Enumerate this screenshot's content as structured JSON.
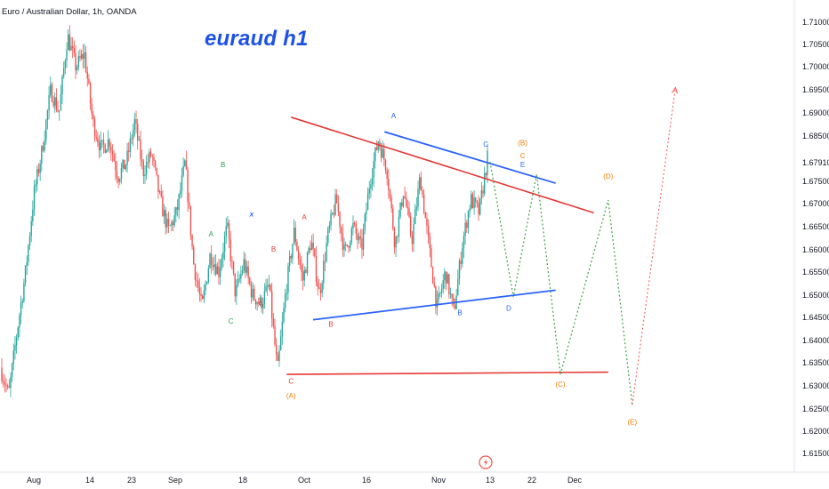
{
  "header": {
    "symbol_line": "Euro / Australian Dollar, 1h, OANDA",
    "annotation_title": "euraud h1"
  },
  "colors": {
    "up": "#26a69a",
    "down": "#ef5350",
    "red_line": "#e53935",
    "blue_line": "#2962ff",
    "projection": "#43a047",
    "final_projection": "#ef5350",
    "green_label": "#2e9b57",
    "red_label": "#e53935",
    "blue_label": "#2962ff",
    "orange_label": "#f57c00"
  },
  "chart_data": {
    "type": "candlestick",
    "title": "Euro / Australian Dollar, 1h, OANDA",
    "annotation": "euraud h1",
    "x_ticks": [
      "Aug",
      "14",
      "23",
      "Sep",
      "18",
      "Oct",
      "16",
      "Nov",
      "13",
      "22",
      "Dec"
    ],
    "y_ticks": [
      "1.71000",
      "1.70500",
      "1.70000",
      "1.69500",
      "1.69000",
      "1.68500",
      "1.67910",
      "1.67500",
      "1.67000",
      "1.66500",
      "1.66000",
      "1.65500",
      "1.65000",
      "1.64500",
      "1.64000",
      "1.63500",
      "1.63000",
      "1.62500",
      "1.62000",
      "1.61500"
    ],
    "ylim": [
      1.612,
      1.713
    ],
    "price_path": [
      1.634,
      1.628,
      1.642,
      1.655,
      1.672,
      1.682,
      1.695,
      1.69,
      1.707,
      1.7,
      1.703,
      1.688,
      1.682,
      1.684,
      1.676,
      1.679,
      1.688,
      1.677,
      1.681,
      1.671,
      1.664,
      1.668,
      1.679,
      1.657,
      1.647,
      1.659,
      1.655,
      1.665,
      1.65,
      1.657,
      1.65,
      1.648,
      1.652,
      1.633,
      1.651,
      1.664,
      1.653,
      1.662,
      1.65,
      1.663,
      1.671,
      1.659,
      1.665,
      1.66,
      1.675,
      1.684,
      1.678,
      1.661,
      1.673,
      1.662,
      1.676,
      1.661,
      1.647,
      1.655,
      1.646,
      1.661,
      1.671,
      1.668,
      1.68
    ],
    "trendlines": [
      {
        "name": "upper resistance",
        "color": "red",
        "points": [
          [
            "Sep 29",
            1.689
          ],
          [
            "Dec 5",
            1.668
          ]
        ]
      },
      {
        "name": "lower support",
        "color": "red",
        "points": [
          [
            "Sep 28",
            1.6325
          ],
          [
            "Dec 8",
            1.633
          ]
        ]
      },
      {
        "name": "triangle upper",
        "color": "blue",
        "points": [
          [
            "Oct 20",
            1.6858
          ],
          [
            "Nov 27",
            1.6745
          ]
        ]
      },
      {
        "name": "triangle lower",
        "color": "blue",
        "points": [
          [
            "Oct 4",
            1.6445
          ],
          [
            "Nov 27",
            1.651
          ]
        ]
      }
    ],
    "projection_path": [
      [
        "Nov 13",
        1.6792
      ],
      [
        "Nov 18",
        1.6495
      ],
      [
        "Nov 23",
        1.6765
      ],
      [
        "Nov 28",
        1.6325
      ],
      [
        "Dec 8",
        1.6708
      ],
      [
        "Dec 13",
        1.6258
      ]
    ],
    "final_projection": [
      [
        "Dec 13",
        1.6258
      ],
      [
        "Dec 22",
        1.6955
      ]
    ],
    "wave_labels": [
      {
        "text": "B",
        "color": "green",
        "x": "Sep 13",
        "y": 1.678
      },
      {
        "text": "A",
        "color": "green",
        "x": "Sep 10",
        "y": 1.6628
      },
      {
        "text": "C",
        "color": "green",
        "x": "Sep 15",
        "y": 1.6437
      },
      {
        "text": "x",
        "color": "blue",
        "x": "Sep 20",
        "y": 1.6672
      },
      {
        "text": "B",
        "color": "red",
        "x": "Sep 25",
        "y": 1.6595
      },
      {
        "text": "A",
        "color": "red",
        "x": "Sep 22",
        "y": 1.6475
      },
      {
        "text": "A",
        "color": "red",
        "x": "Oct 2",
        "y": 1.6665
      },
      {
        "text": "B",
        "color": "red",
        "x": "Oct 8",
        "y": 1.643
      },
      {
        "text": "C",
        "color": "red",
        "x": "Sep 29",
        "y": 1.6305
      },
      {
        "text": "(A)",
        "color": "orange",
        "x": "Sep 29",
        "y": 1.6272
      },
      {
        "text": "A",
        "color": "blue",
        "x": "Oct 22",
        "y": 1.6888
      },
      {
        "text": "B",
        "color": "blue",
        "x": "Nov 6",
        "y": 1.6455
      },
      {
        "text": "C",
        "color": "blue",
        "x": "Nov 12",
        "y": 1.6825
      },
      {
        "text": "(B)",
        "color": "orange",
        "x": "Nov 20",
        "y": 1.6828
      },
      {
        "text": "C",
        "color": "orange",
        "x": "Nov 20",
        "y": 1.68
      },
      {
        "text": "E",
        "color": "blue",
        "x": "Nov 20",
        "y": 1.678
      },
      {
        "text": "D",
        "color": "blue",
        "x": "Nov 17",
        "y": 1.6465
      },
      {
        "text": "(C)",
        "color": "orange",
        "x": "Nov 28",
        "y": 1.6298
      },
      {
        "text": "(D)",
        "color": "orange",
        "x": "Dec 8",
        "y": 1.6755
      },
      {
        "text": "(E)",
        "color": "orange",
        "x": "Dec 13",
        "y": 1.6215
      }
    ],
    "grid": false
  }
}
